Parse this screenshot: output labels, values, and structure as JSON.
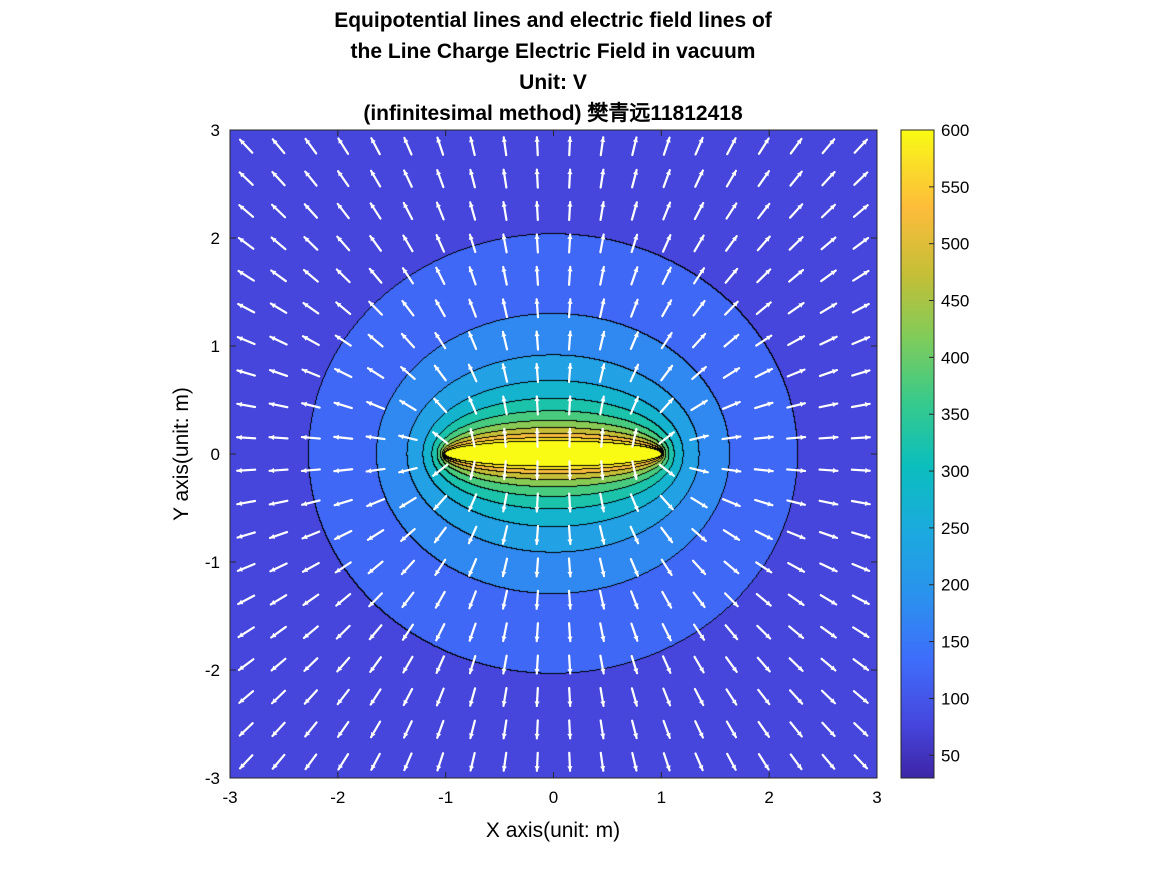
{
  "chart_data": {
    "type": "heatmap",
    "subtype": "filled contour with quiver arrows",
    "title_lines": [
      "Equipotential lines and electric field lines of",
      "the Line Charge Electric Field in vacuum",
      "Unit: V",
      "(infinitesimal method) 樊青远11812418"
    ],
    "xlabel": "X axis(unit: m)",
    "ylabel": "Y axis(unit: m)",
    "xlim": [
      -3,
      3
    ],
    "ylim": [
      -3,
      3
    ],
    "x_ticks": [
      -3,
      -2,
      -1,
      0,
      1,
      2,
      3
    ],
    "y_ticks": [
      -3,
      -2,
      -1,
      0,
      1,
      2,
      3
    ],
    "line_charge": {
      "x_start": -1,
      "x_end": 1,
      "y": 0
    },
    "contour_levels": [
      50,
      100,
      150,
      200,
      250,
      300,
      350,
      400,
      450,
      500,
      550,
      600
    ],
    "color_limits": [
      30,
      600
    ],
    "colorbar": {
      "ticks": [
        50,
        100,
        150,
        200,
        250,
        300,
        350,
        400,
        450,
        500,
        550,
        600
      ],
      "colormap": "parula"
    },
    "quiver_grid": {
      "start": -2.85,
      "step": 0.3,
      "count": 20
    },
    "colors": {
      "contour_line": "#000000",
      "arrow": "#ffffff",
      "axes_line": "#262626"
    },
    "grid": false
  }
}
